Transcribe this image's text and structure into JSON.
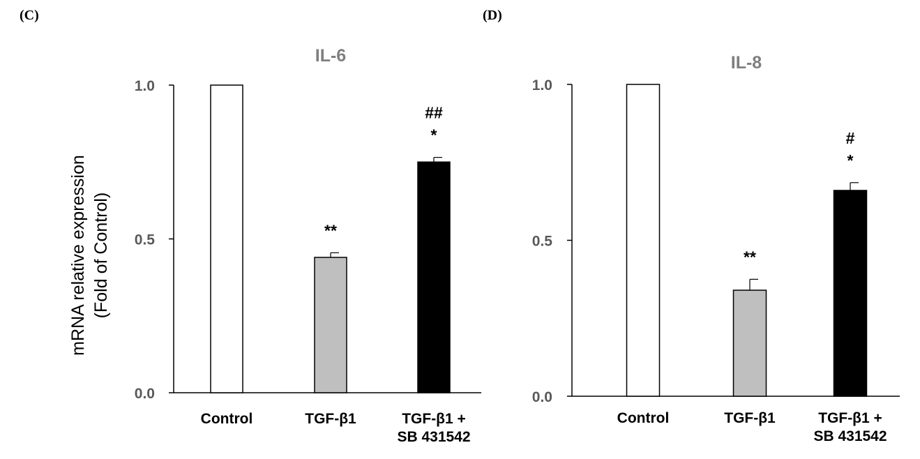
{
  "panels": [
    {
      "label": "(C)"
    },
    {
      "label": "(D)"
    }
  ],
  "chart_data": [
    {
      "type": "bar",
      "title": "IL-6",
      "ylabel_lines": [
        "mRNA relative expression",
        "(Fold of Control)"
      ],
      "ylim": [
        0,
        1.0
      ],
      "yticks": [
        "0.0",
        "0.5",
        "1.0"
      ],
      "categories": [
        [
          "Control"
        ],
        [
          "TGF-β1"
        ],
        [
          "TGF-β1 +",
          "SB 431542"
        ]
      ],
      "values": [
        1.0,
        0.44,
        0.75
      ],
      "errors": [
        0.0,
        0.015,
        0.015
      ],
      "colors": [
        "#ffffff",
        "#bfbfbf",
        "#000000"
      ],
      "annotations": [
        [],
        [
          "**"
        ],
        [
          "*",
          "##"
        ]
      ]
    },
    {
      "type": "bar",
      "title": "IL-8",
      "ylabel_lines": [],
      "ylim": [
        0,
        1.0
      ],
      "yticks": [
        "0.0",
        "0.5",
        "1.0"
      ],
      "categories": [
        [
          "Control"
        ],
        [
          "TGF-β1"
        ],
        [
          "TGF-β1 +",
          "SB 431542"
        ]
      ],
      "values": [
        1.0,
        0.34,
        0.66
      ],
      "errors": [
        0.0,
        0.035,
        0.025
      ],
      "colors": [
        "#ffffff",
        "#bfbfbf",
        "#000000"
      ],
      "annotations": [
        [],
        [
          "**"
        ],
        [
          "*",
          "#"
        ]
      ]
    }
  ]
}
